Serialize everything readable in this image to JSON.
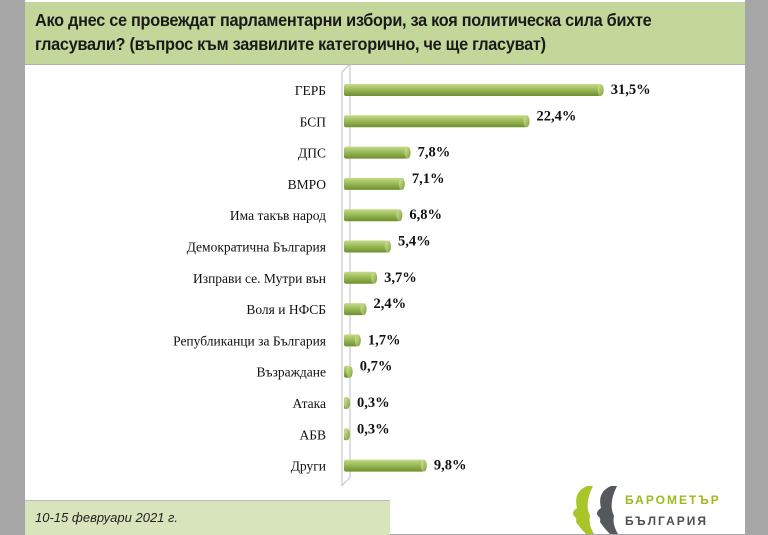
{
  "title": "Ако днес се провеждат парламентарни избори, за коя политическа сила бихте гласували? (въпрос към заявилите категорично, че ще гласуват)",
  "footer": {
    "date": "10-15 февруари 2021 г."
  },
  "logo": {
    "line1": "БАРОМЕТЪР",
    "line2": "БЪЛГАРИЯ"
  },
  "colors": {
    "bar": "#9bbb59",
    "bar_dark": "#6f8f2f",
    "title_bg": "#c4d79b",
    "footer_bg": "#d8e4bc"
  },
  "chart_data": {
    "type": "bar",
    "orientation": "horizontal",
    "title": "Ако днес се провеждат парламентарни избори, за коя политическа сила бихте гласували? (въпрос към заявилите категорично, че ще гласуват)",
    "categories": [
      "ГЕРБ",
      "БСП",
      "ДПС",
      "ВМРО",
      "Има такъв народ",
      "Демократична България",
      "Изправи се. Мутри вън",
      "Воля и НФСБ",
      "Републиканци за България",
      "Възраждане",
      "Атака",
      "АБВ",
      "Други"
    ],
    "values": [
      31.5,
      22.4,
      7.8,
      7.1,
      6.8,
      5.4,
      3.7,
      2.4,
      1.7,
      0.7,
      0.3,
      0.3,
      9.8
    ],
    "labels": [
      "31,5%",
      "22,4%",
      "7,8%",
      "7,1%",
      "6,8%",
      "5,4%",
      "3,7%",
      "2,4%",
      "1,7%",
      "0,7%",
      "0,3%",
      "0,3%",
      "9,8%"
    ],
    "unit": "%",
    "xlim": [
      0,
      35
    ],
    "grid": false,
    "legend": "none"
  }
}
